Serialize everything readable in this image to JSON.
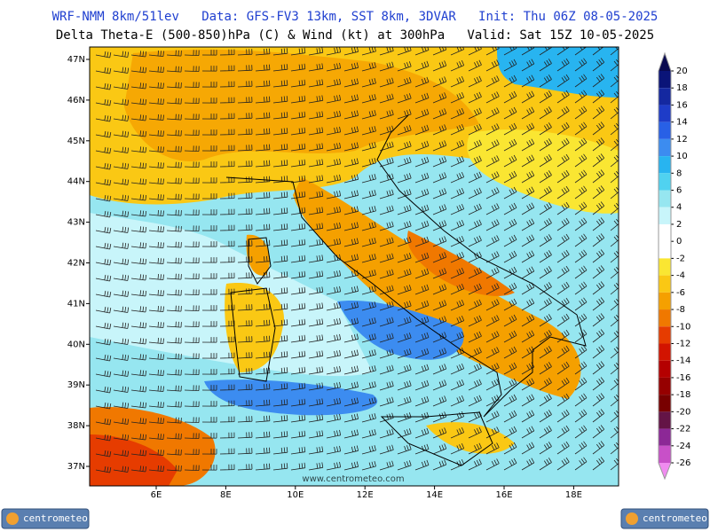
{
  "header": {
    "line1": "WRF-NMM 8km/51lev   Data: GFS-FV3 13km, SST 8km, 3DVAR   Init: Thu 06Z 08-05-2025",
    "line2": "Delta Theta-E (500-850)hPa (C) & Wind (kt) at 300hPa   Valid: Sat 15Z 10-05-2025"
  },
  "map": {
    "lat_ticks": [
      {
        "value": 47,
        "label": "47N"
      },
      {
        "value": 46,
        "label": "46N"
      },
      {
        "value": 45,
        "label": "45N"
      },
      {
        "value": 44,
        "label": "44N"
      },
      {
        "value": 43,
        "label": "43N"
      },
      {
        "value": 42,
        "label": "42N"
      },
      {
        "value": 41,
        "label": "41N"
      },
      {
        "value": 40,
        "label": "40N"
      },
      {
        "value": 39,
        "label": "39N"
      },
      {
        "value": 38,
        "label": "38N"
      },
      {
        "value": 37,
        "label": "37N"
      }
    ],
    "lon_ticks": [
      {
        "value": 6,
        "label": "6E"
      },
      {
        "value": 8,
        "label": "8E"
      },
      {
        "value": 10,
        "label": "10E"
      },
      {
        "value": 12,
        "label": "12E"
      },
      {
        "value": 14,
        "label": "14E"
      },
      {
        "value": 16,
        "label": "16E"
      },
      {
        "value": 18,
        "label": "18E"
      }
    ],
    "watermark": "www.centrometeo.com"
  },
  "colorbar": {
    "ticks": [
      20,
      18,
      16,
      14,
      12,
      10,
      8,
      6,
      4,
      2,
      0,
      -2,
      -4,
      -6,
      -8,
      -10,
      -12,
      -14,
      -16,
      -18,
      -20,
      -22,
      -24,
      -26
    ],
    "colors": [
      "#0a0a50",
      "#0a1478",
      "#1428a0",
      "#1e3cc8",
      "#2860e6",
      "#3c8cf0",
      "#28b4f0",
      "#50d2f0",
      "#96e6f0",
      "#c8f5fa",
      "#ffffff",
      "#ffffff",
      "#fae632",
      "#fac814",
      "#f5a000",
      "#f07800",
      "#e63c00",
      "#d21400",
      "#b40000",
      "#960000",
      "#780000",
      "#641446",
      "#8c2896",
      "#c850c8",
      "#f08cf0"
    ]
  },
  "footer": {
    "logo_left": "centrometeo",
    "logo_right": "centrometeo"
  }
}
